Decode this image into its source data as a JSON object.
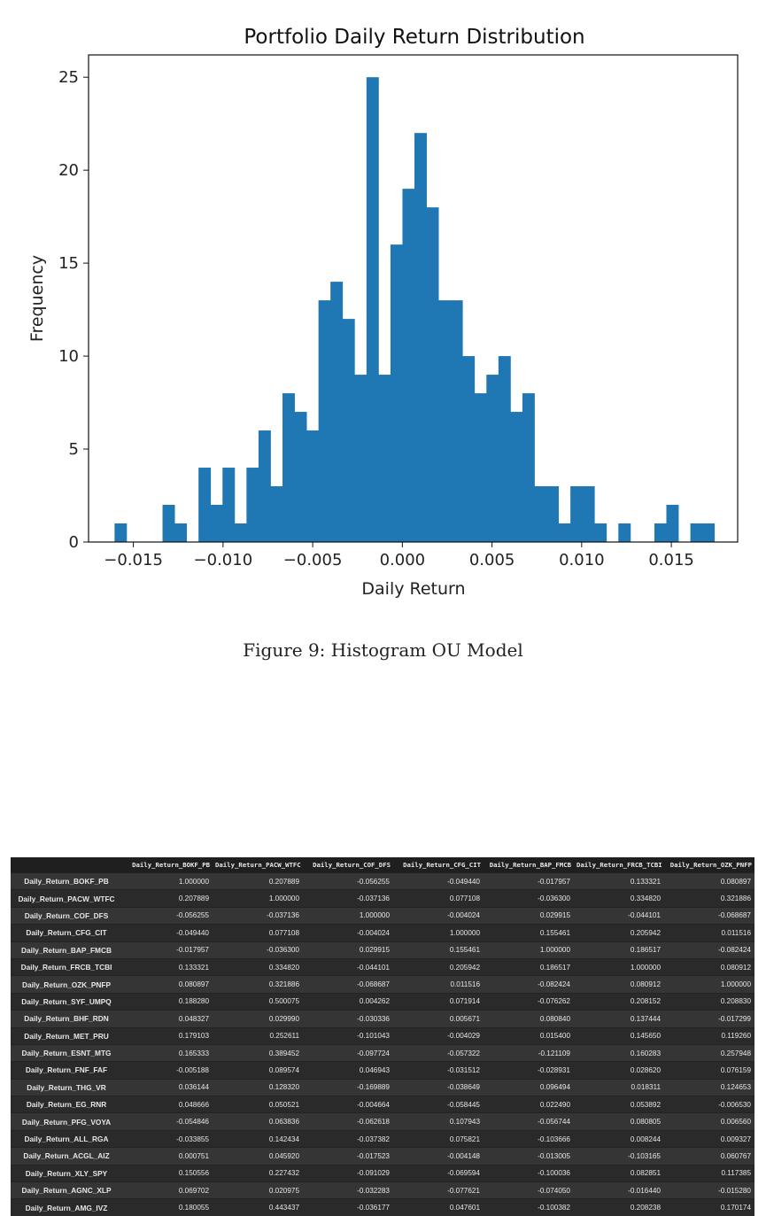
{
  "chart_data": {
    "type": "bar",
    "title": "Portfolio Daily Return Distribution",
    "xlabel": "Daily Return",
    "ylabel": "Frequency",
    "xlim": [
      -0.0175,
      0.0187
    ],
    "ylim": [
      0,
      26.2
    ],
    "xticks": [
      -0.015,
      -0.01,
      -0.005,
      0.0,
      0.005,
      0.01,
      0.015
    ],
    "xtick_labels": [
      "−0.015",
      "−0.010",
      "−0.005",
      "0.000",
      "0.005",
      "0.010",
      "0.015"
    ],
    "yticks": [
      0,
      5,
      10,
      15,
      20,
      25
    ],
    "ytick_labels": [
      "0",
      "5",
      "10",
      "15",
      "20",
      "25"
    ],
    "bar_color": "#1f77b4",
    "bin_start": -0.01605,
    "bin_width": 0.000669,
    "counts": [
      1,
      0,
      0,
      0,
      2,
      1,
      0,
      4,
      2,
      4,
      1,
      4,
      6,
      3,
      8,
      7,
      6,
      13,
      14,
      12,
      9,
      25,
      9,
      16,
      19,
      22,
      18,
      13,
      13,
      10,
      8,
      9,
      10,
      7,
      8,
      3,
      3,
      1,
      3,
      3,
      1,
      0,
      1,
      0,
      0,
      1,
      2,
      0,
      1,
      1
    ]
  },
  "caption": "Figure 9: Histogram OU Model",
  "table": {
    "columns": [
      "Daily_Return_BOKF_PB",
      "Daily_Return_PACW_WTFC",
      "Daily_Return_COF_DFS",
      "Daily_Return_CFG_CIT",
      "Daily_Return_BAP_FMCB",
      "Daily_Return_FRCB_TCBI",
      "Daily_Return_OZK_PNFP"
    ],
    "rows": [
      {
        "label": "Daily_Return_BOKF_PB",
        "values": [
          "1.000000",
          "0.207889",
          "-0.056255",
          "-0.049440",
          "-0.017957",
          "0.133321",
          "0.080897"
        ]
      },
      {
        "label": "Daily_Return_PACW_WTFC",
        "values": [
          "0.207889",
          "1.000000",
          "-0.037136",
          "0.077108",
          "-0.036300",
          "0.334820",
          "0.321886"
        ]
      },
      {
        "label": "Daily_Return_COF_DFS",
        "values": [
          "-0.056255",
          "-0.037136",
          "1.000000",
          "-0.004024",
          "0.029915",
          "-0.044101",
          "-0.068687"
        ]
      },
      {
        "label": "Daily_Return_CFG_CIT",
        "values": [
          "-0.049440",
          "0.077108",
          "-0.004024",
          "1.000000",
          "0.155461",
          "0.205942",
          "0.011516"
        ]
      },
      {
        "label": "Daily_Return_BAP_FMCB",
        "values": [
          "-0.017957",
          "-0.036300",
          "0.029915",
          "0.155461",
          "1.000000",
          "0.186517",
          "-0.082424"
        ]
      },
      {
        "label": "Daily_Return_FRCB_TCBI",
        "values": [
          "0.133321",
          "0.334820",
          "-0.044101",
          "0.205942",
          "0.186517",
          "1.000000",
          "0.080912"
        ]
      },
      {
        "label": "Daily_Return_OZK_PNFP",
        "values": [
          "0.080897",
          "0.321886",
          "-0.068687",
          "0.011516",
          "-0.082424",
          "0.080912",
          "1.000000"
        ]
      },
      {
        "label": "Daily_Return_SYF_UMPQ",
        "values": [
          "0.188280",
          "0.500075",
          "0.004262",
          "0.071914",
          "-0.076262",
          "0.208152",
          "0.208830"
        ]
      },
      {
        "label": "Daily_Return_BHF_RDN",
        "values": [
          "0.048327",
          "0.029990",
          "-0.030336",
          "0.005671",
          "0.080840",
          "0.137444",
          "-0.017299"
        ]
      },
      {
        "label": "Daily_Return_MET_PRU",
        "values": [
          "0.179103",
          "0.252611",
          "-0.101043",
          "-0.004029",
          "0.015400",
          "0.145650",
          "0.119260"
        ]
      },
      {
        "label": "Daily_Return_ESNT_MTG",
        "values": [
          "0.165333",
          "0.389452",
          "-0.097724",
          "-0.057322",
          "-0.121109",
          "0.160283",
          "0.257948"
        ]
      },
      {
        "label": "Daily_Return_FNF_FAF",
        "values": [
          "-0.005188",
          "0.089574",
          "0.046943",
          "-0.031512",
          "-0.028931",
          "0.028620",
          "0.076159"
        ]
      },
      {
        "label": "Daily_Return_THG_VR",
        "values": [
          "0.036144",
          "0.128320",
          "-0.169889",
          "-0.038649",
          "0.096494",
          "0.018311",
          "0.124653"
        ]
      },
      {
        "label": "Daily_Return_EG_RNR",
        "values": [
          "0.048666",
          "0.050521",
          "-0.004664",
          "-0.058445",
          "0.022490",
          "0.053892",
          "-0.006530"
        ]
      },
      {
        "label": "Daily_Return_PFG_VOYA",
        "values": [
          "-0.054846",
          "0.063836",
          "-0.062618",
          "0.107943",
          "-0.056744",
          "0.080805",
          "0.006560"
        ]
      },
      {
        "label": "Daily_Return_ALL_RGA",
        "values": [
          "-0.033855",
          "0.142434",
          "-0.037382",
          "0.075821",
          "-0.103666",
          "0.008244",
          "0.009327"
        ]
      },
      {
        "label": "Daily_Return_ACGL_AIZ",
        "values": [
          "0.000751",
          "0.045920",
          "-0.017523",
          "-0.004148",
          "-0.013005",
          "-0.103165",
          "0.060767"
        ]
      },
      {
        "label": "Daily_Return_XLY_SPY",
        "values": [
          "0.150556",
          "0.227432",
          "-0.091029",
          "-0.069594",
          "-0.100036",
          "0.082851",
          "0.117385"
        ]
      },
      {
        "label": "Daily_Return_AGNC_XLP",
        "values": [
          "0.069702",
          "0.020975",
          "-0.032283",
          "-0.077621",
          "-0.074050",
          "-0.016440",
          "-0.015280"
        ]
      },
      {
        "label": "Daily_Return_AMG_IVZ",
        "values": [
          "0.180055",
          "0.443437",
          "-0.036177",
          "0.047601",
          "-0.100382",
          "0.208238",
          "0.170174"
        ]
      }
    ]
  }
}
